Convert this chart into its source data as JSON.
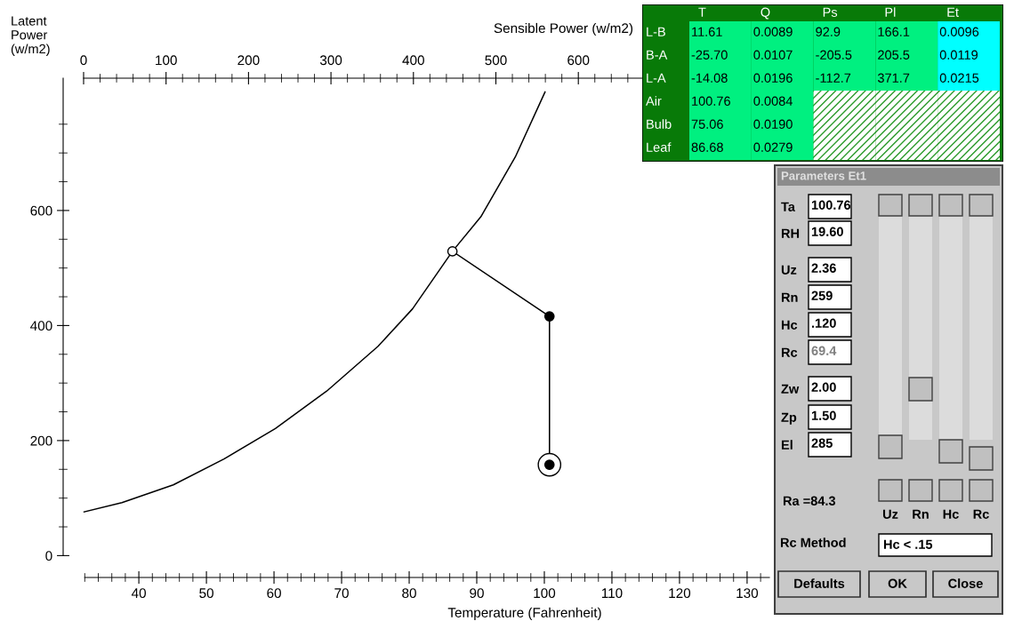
{
  "chart_data": [
    {
      "type": "line",
      "xlabel": "Temperature (Fahrenheit)",
      "x2label": "Sensible Power (w/m2)",
      "ylabel": "Latent Power (w/m2)",
      "xlim": [
        28.8,
        133.3
      ],
      "xticks": [
        {
          "value": 32,
          "label": null
        },
        {
          "value": 34,
          "label": null
        },
        {
          "value": 36,
          "label": null
        },
        {
          "value": 38,
          "label": null
        },
        40,
        {
          "value": 42,
          "label": null
        },
        {
          "value": 44,
          "label": null
        },
        {
          "value": 46,
          "label": null
        },
        {
          "value": 48,
          "label": null
        },
        50,
        {
          "value": 52,
          "label": null
        },
        {
          "value": 54,
          "label": null
        },
        {
          "value": 56,
          "label": null
        },
        {
          "value": 58,
          "label": null
        },
        60,
        {
          "value": 62,
          "label": null
        },
        {
          "value": 64,
          "label": null
        },
        {
          "value": 66,
          "label": null
        },
        {
          "value": 68,
          "label": null
        },
        70,
        {
          "value": 72,
          "label": null
        },
        {
          "value": 74,
          "label": null
        },
        {
          "value": 76,
          "label": null
        },
        {
          "value": 78,
          "label": null
        },
        80,
        {
          "value": 82,
          "label": null
        },
        {
          "value": 84,
          "label": null
        },
        {
          "value": 86,
          "label": null
        },
        {
          "value": 88,
          "label": null
        },
        90,
        {
          "value": 92,
          "label": null
        },
        {
          "value": 94,
          "label": null
        },
        {
          "value": 96,
          "label": null
        },
        {
          "value": 98,
          "label": null
        },
        100,
        {
          "value": 102,
          "label": null
        },
        {
          "value": 104,
          "label": null
        },
        {
          "value": 106,
          "label": null
        },
        {
          "value": 108,
          "label": null
        },
        110,
        {
          "value": 112,
          "label": null
        },
        {
          "value": 114,
          "label": null
        },
        {
          "value": 116,
          "label": null
        },
        {
          "value": 118,
          "label": null
        },
        120,
        {
          "value": 122,
          "label": null
        },
        {
          "value": 124,
          "label": null
        },
        {
          "value": 126,
          "label": null
        },
        {
          "value": 128,
          "label": null
        },
        130,
        {
          "value": 132,
          "label": null
        }
      ],
      "x2lim": [
        -24.8,
        831.7
      ],
      "x2ticks": [
        0,
        {
          "value": 20,
          "label": null
        },
        {
          "value": 40,
          "label": null
        },
        {
          "value": 60,
          "label": null
        },
        {
          "value": 80,
          "label": null
        },
        100,
        {
          "value": 120,
          "label": null
        },
        {
          "value": 140,
          "label": null
        },
        {
          "value": 160,
          "label": null
        },
        {
          "value": 180,
          "label": null
        },
        200,
        {
          "value": 220,
          "label": null
        },
        {
          "value": 240,
          "label": null
        },
        {
          "value": 260,
          "label": null
        },
        {
          "value": 280,
          "label": null
        },
        300,
        {
          "value": 320,
          "label": null
        },
        {
          "value": 340,
          "label": null
        },
        {
          "value": 360,
          "label": null
        },
        {
          "value": 380,
          "label": null
        },
        400,
        {
          "value": 420,
          "label": null
        },
        {
          "value": 440,
          "label": null
        },
        {
          "value": 460,
          "label": null
        },
        {
          "value": 480,
          "label": null
        },
        500,
        {
          "value": 520,
          "label": null
        },
        {
          "value": 540,
          "label": null
        },
        {
          "value": 560,
          "label": null
        },
        {
          "value": 580,
          "label": null
        },
        600,
        {
          "value": 620,
          "label": null
        },
        {
          "value": 640,
          "label": null
        },
        {
          "value": 660,
          "label": null
        }
      ],
      "ylim": [
        -38,
        830
      ],
      "yticks": [
        0,
        {
          "value": 50,
          "label": null
        },
        {
          "value": 100,
          "label": null
        },
        {
          "value": 150,
          "label": null
        },
        200,
        {
          "value": 250,
          "label": null
        },
        {
          "value": 300,
          "label": null
        },
        {
          "value": 350,
          "label": null
        },
        400,
        {
          "value": 450,
          "label": null
        },
        {
          "value": 500,
          "label": null
        },
        {
          "value": 550,
          "label": null
        },
        600,
        {
          "value": 650,
          "label": null
        },
        {
          "value": 700,
          "label": null
        },
        {
          "value": 750,
          "label": null
        }
      ],
      "grid": false,
      "legend": false,
      "series": [
        {
          "type": "line",
          "color": "#000000",
          "marker": "none",
          "x": [
            31.9,
            37.5,
            45.1,
            52.6,
            60.2,
            67.8,
            75.4,
            80.5,
            86.4,
            90.6,
            95.7,
            100.1
          ],
          "values": [
            76,
            92,
            123,
            168,
            221,
            286,
            364,
            429,
            529,
            589,
            693,
            806
          ]
        },
        {
          "type": "line",
          "color": "#000000",
          "marker": "none",
          "x": [
            86.4,
            100.76,
            100.76
          ],
          "values": [
            529,
            416,
            158
          ]
        },
        {
          "type": "scatter",
          "color": "#ffffff",
          "marker": "circle",
          "x": [
            86.4
          ],
          "values": [
            529
          ]
        },
        {
          "type": "scatter",
          "color": "#000000",
          "marker": "circle",
          "x": [
            100.76
          ],
          "values": [
            416
          ]
        },
        {
          "type": "bubble",
          "color": "#ffffff",
          "marker": "circle",
          "x": [
            100.76
          ],
          "values": [
            158
          ],
          "sizes": [
            1
          ]
        },
        {
          "type": "scatter",
          "color": "#000000",
          "marker": "circle",
          "x": [
            100.76
          ],
          "values": [
            158
          ]
        }
      ]
    },
    {
      "type": "other",
      "categories": [
        "T",
        "Q",
        "Ps",
        "Pl",
        "Et"
      ],
      "y_categories": [
        "L-B",
        "B-A",
        "L-A",
        "Air",
        "Bulb",
        "Leaf"
      ],
      "colors": [
        "#00f080",
        "#00f080",
        "#00f080",
        "#00f080",
        "#00ffff"
      ],
      "cell_labels": [
        [
          "11.61",
          "0.0089",
          "92.9",
          "166.1",
          "0.0096"
        ],
        [
          "-25.70",
          "0.0107",
          "-205.5",
          "205.5",
          "0.0119"
        ],
        [
          "-14.08",
          "0.0196",
          "-112.7",
          "371.7",
          "0.0215"
        ],
        [
          "100.76",
          "0.0084",
          null,
          null,
          null
        ],
        [
          "75.06",
          "0.0190",
          null,
          null,
          null
        ],
        [
          "86.68",
          "0.0279",
          null,
          null,
          null
        ]
      ]
    },
    {
      "type": "other",
      "title": "Parameters Et1",
      "categories": [
        "Ta",
        "RH",
        "Uz",
        "Rn",
        "Hc",
        "Rc",
        "Zw",
        "Zp",
        "El"
      ],
      "value_labels": [
        "100.76",
        "19.60",
        "2.36",
        "259",
        ".120",
        "69.4",
        "2.00",
        "1.50",
        "285"
      ],
      "annotations": [
        "Ra =84.3",
        "Uz",
        "Rn",
        "Hc",
        "Rc",
        "Rc Method",
        "Hc < .15",
        "Defaults",
        "OK",
        "Close"
      ]
    }
  ]
}
